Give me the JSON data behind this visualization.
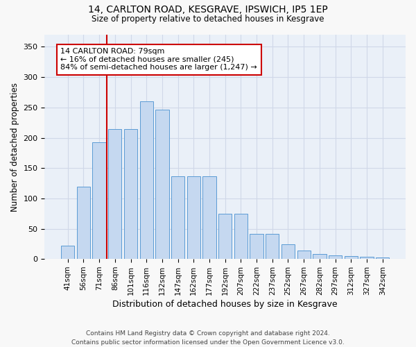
{
  "title1": "14, CARLTON ROAD, KESGRAVE, IPSWICH, IP5 1EP",
  "title2": "Size of property relative to detached houses in Kesgrave",
  "xlabel": "Distribution of detached houses by size in Kesgrave",
  "ylabel": "Number of detached properties",
  "categories": [
    "41sqm",
    "56sqm",
    "71sqm",
    "86sqm",
    "101sqm",
    "116sqm",
    "132sqm",
    "147sqm",
    "162sqm",
    "177sqm",
    "192sqm",
    "207sqm",
    "222sqm",
    "237sqm",
    "252sqm",
    "267sqm",
    "282sqm",
    "297sqm",
    "312sqm",
    "327sqm",
    "342sqm"
  ],
  "bar_values": [
    22,
    119,
    193,
    214,
    214,
    260,
    246,
    136,
    136,
    136,
    75,
    75,
    41,
    41,
    24,
    14,
    8,
    6,
    5,
    4,
    2
  ],
  "bar_color": "#c5d8f0",
  "bar_edge_color": "#5b9bd5",
  "vline_color": "#cc0000",
  "annotation_line1": "14 CARLTON ROAD: 79sqm",
  "annotation_line2": "← 16% of detached houses are smaller (245)",
  "annotation_line3": "84% of semi-detached houses are larger (1,247) →",
  "annotation_box_color": "#ffffff",
  "annotation_box_edge": "#cc0000",
  "ylim": [
    0,
    370
  ],
  "yticks": [
    0,
    50,
    100,
    150,
    200,
    250,
    300,
    350
  ],
  "grid_color": "#d0d8e8",
  "background_color": "#eaf0f8",
  "fig_background": "#f8f8f8",
  "footer": "Contains HM Land Registry data © Crown copyright and database right 2024.\nContains public sector information licensed under the Open Government Licence v3.0."
}
